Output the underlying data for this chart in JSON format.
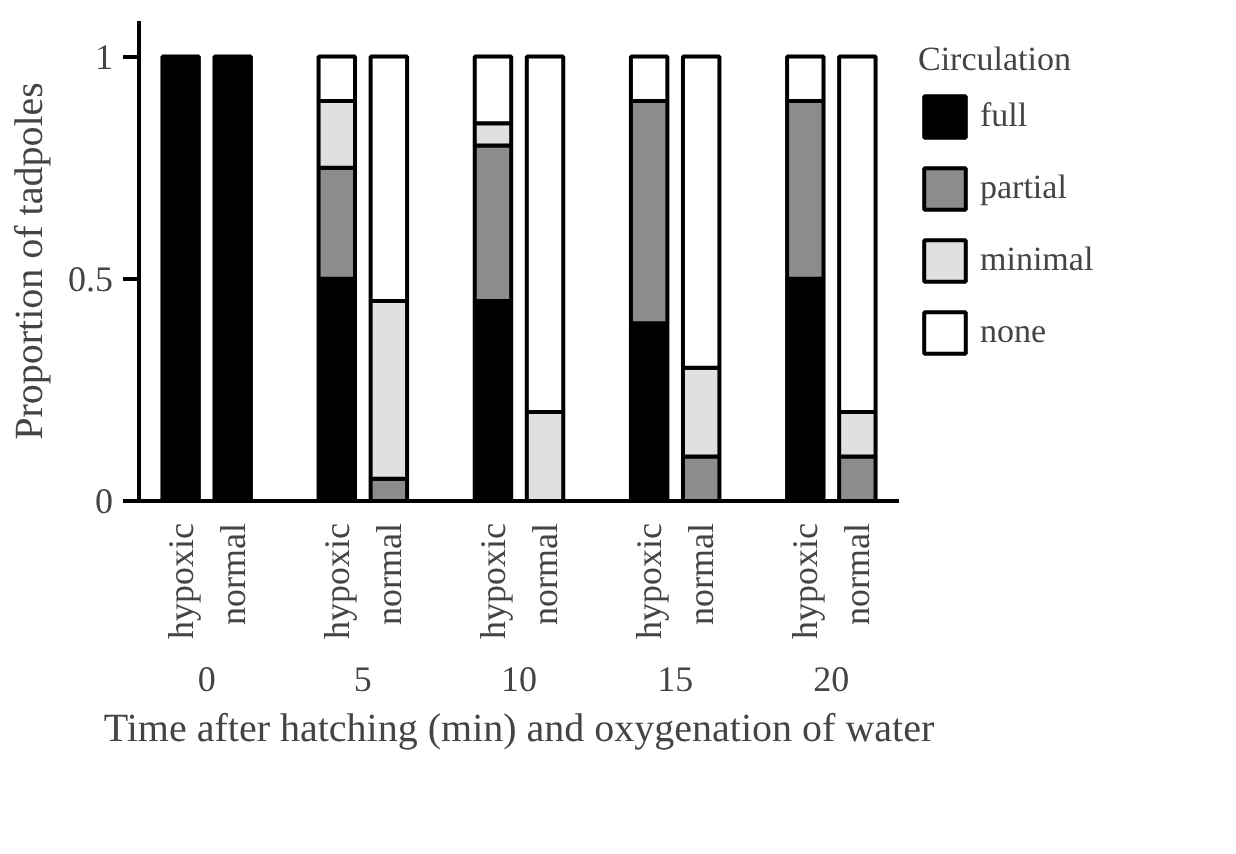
{
  "chart_data": {
    "type": "bar",
    "stacked": true,
    "ylabel": "Proportion of tadpoles",
    "xlabel": "Time after hatching (min) and oxygenation of water",
    "legend_title": "Circulation",
    "legend": "right",
    "grid": false,
    "categories": [
      "hypoxic",
      "normal",
      "hypoxic",
      "normal",
      "hypoxic",
      "normal",
      "hypoxic",
      "normal",
      "hypoxic",
      "normal"
    ],
    "annotations": [
      "0",
      "5",
      "10",
      "15",
      "20"
    ],
    "ylim": [
      0,
      1.08
    ],
    "yticks": [
      0,
      {
        "value": 0.5,
        "label": "0.5"
      },
      1
    ],
    "series": [
      {
        "name": "full",
        "color": "#000000",
        "values": [
          1,
          1,
          0.5,
          0,
          0.45,
          0,
          0.4,
          0,
          0.5,
          0
        ]
      },
      {
        "name": "partial",
        "color": "#8c8c8c",
        "values": [
          0,
          0,
          0.25,
          0.05,
          0.35,
          0,
          0.5,
          0.1,
          0.4,
          0.1
        ]
      },
      {
        "name": "minimal",
        "color": "#e0e0e0",
        "values": [
          0,
          0,
          0.15,
          0.4,
          0.05,
          0.2,
          0,
          0.2,
          0,
          0.1
        ]
      },
      {
        "name": "none",
        "color": "#ffffff",
        "values": [
          0,
          0,
          0.1,
          0.55,
          0.15,
          0.8,
          0.1,
          0.7,
          0.1,
          0.8
        ]
      }
    ]
  }
}
